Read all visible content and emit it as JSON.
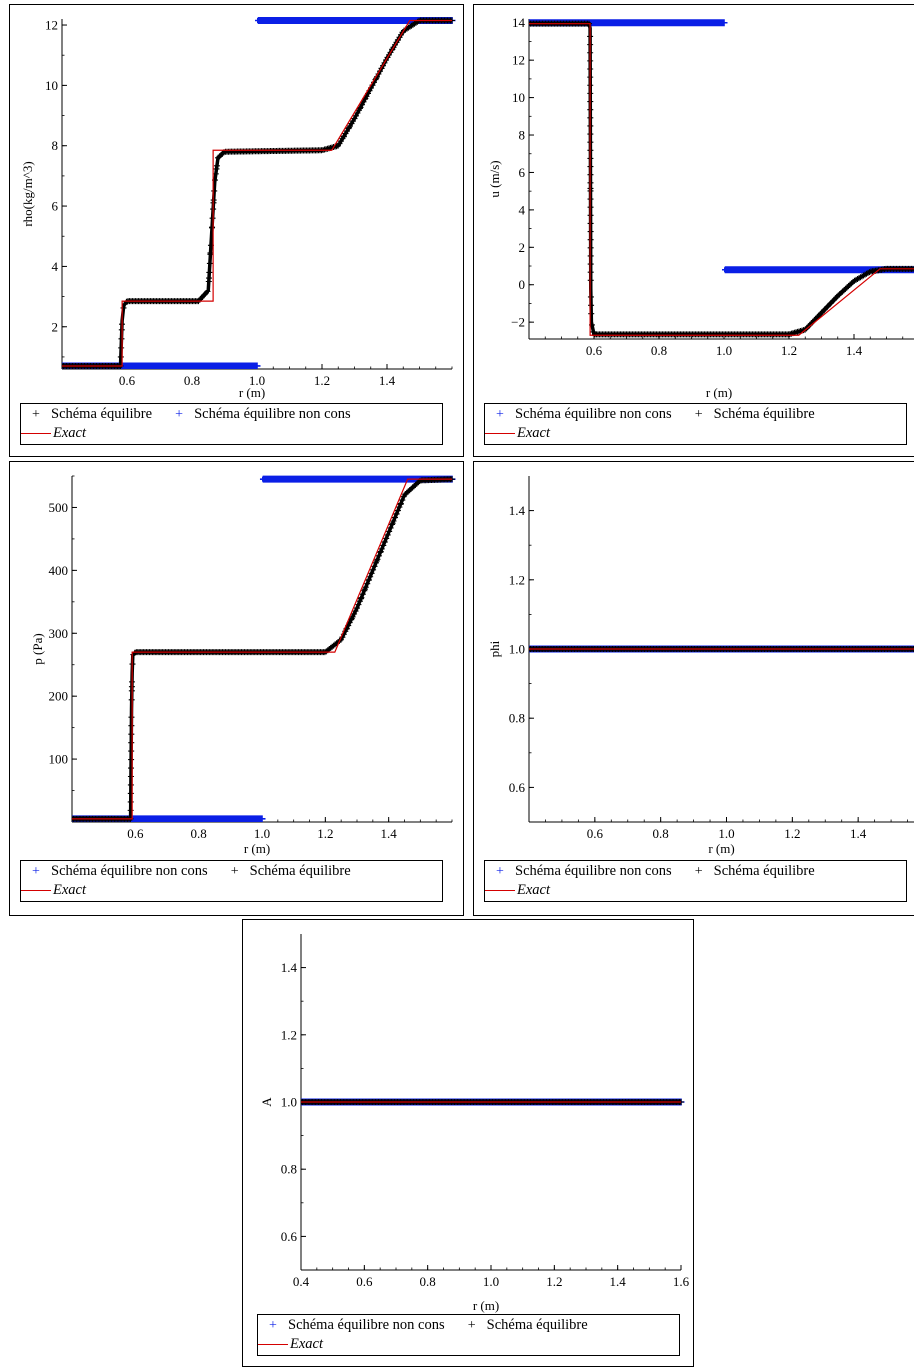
{
  "colors": {
    "exact": "#d40000",
    "equilibre": "#000000",
    "non_cons": "#0a1fe6"
  },
  "chart_data": [
    {
      "id": "rho",
      "type": "line",
      "xlabel": "r (m)",
      "ylabel": "rho(kg/m^3)",
      "xlim": [
        0.4,
        1.6
      ],
      "ylim": [
        0.6,
        12.2
      ],
      "xticks": [
        {
          "v": 0.6,
          "t": "0.6"
        },
        {
          "v": 0.8,
          "t": "0.8"
        },
        {
          "v": 1.0,
          "t": "1.0"
        },
        {
          "v": 1.2,
          "t": "1.2"
        },
        {
          "v": 1.4,
          "t": "1.4"
        }
      ],
      "yticks": [
        {
          "v": 2,
          "t": "2"
        },
        {
          "v": 4,
          "t": "4"
        },
        {
          "v": 6,
          "t": "6"
        },
        {
          "v": 8,
          "t": "8"
        },
        {
          "v": 10,
          "t": "10"
        },
        {
          "v": 12,
          "t": "12"
        }
      ],
      "series": [
        {
          "name": "Schéma équilibre",
          "role": "equilibre",
          "marker": "+",
          "x": [
            0.4,
            0.58,
            0.585,
            0.59,
            0.6,
            0.82,
            0.85,
            0.86,
            0.87,
            0.88,
            0.9,
            1.2,
            1.25,
            1.3,
            1.35,
            1.4,
            1.45,
            1.5,
            1.6
          ],
          "y": [
            0.7,
            0.7,
            2.2,
            2.7,
            2.85,
            2.85,
            3.2,
            5.0,
            6.8,
            7.6,
            7.8,
            7.85,
            8.0,
            8.9,
            9.9,
            10.9,
            11.8,
            12.15,
            12.15
          ]
        },
        {
          "name": "Schéma équilibre non cons",
          "role": "non_cons",
          "marker": "+",
          "x": [
            0.4,
            1.0,
            1.0,
            1.6
          ],
          "y": [
            0.7,
            0.7,
            12.15,
            12.15
          ]
        },
        {
          "name": "Exact",
          "role": "exact",
          "x": [
            0.4,
            0.585,
            0.585,
            0.865,
            0.865,
            1.23,
            1.47,
            1.6
          ],
          "y": [
            0.7,
            0.7,
            2.85,
            2.85,
            7.85,
            7.85,
            12.15,
            12.15
          ]
        }
      ],
      "legend": [
        [
          {
            "sym": "+",
            "role": "equilibre",
            "label": "Schéma équilibre"
          },
          {
            "sym": "+",
            "role": "non_cons",
            "label": "Schéma équilibre non cons"
          }
        ],
        [
          {
            "sym": "line",
            "role": "exact",
            "label": "Exact",
            "italic": true
          }
        ]
      ]
    },
    {
      "id": "u",
      "type": "line",
      "xlabel": "r (m)",
      "ylabel": "u (m/s)",
      "xlim": [
        0.4,
        1.6
      ],
      "ylim": [
        -2.9,
        14.2
      ],
      "xticks": [
        {
          "v": 0.6,
          "t": "0.6"
        },
        {
          "v": 0.8,
          "t": "0.8"
        },
        {
          "v": 1.0,
          "t": "1.0"
        },
        {
          "v": 1.2,
          "t": "1.2"
        },
        {
          "v": 1.4,
          "t": "1.4"
        }
      ],
      "yticks": [
        {
          "v": -2,
          "t": "−2"
        },
        {
          "v": 0,
          "t": "0"
        },
        {
          "v": 2,
          "t": "2"
        },
        {
          "v": 4,
          "t": "4"
        },
        {
          "v": 6,
          "t": "6"
        },
        {
          "v": 8,
          "t": "8"
        },
        {
          "v": 10,
          "t": "10"
        },
        {
          "v": 12,
          "t": "12"
        },
        {
          "v": 14,
          "t": "14"
        }
      ],
      "series": [
        {
          "name": "Schéma équilibre non cons",
          "role": "non_cons",
          "marker": "+",
          "x": [
            0.4,
            1.0,
            1.0,
            1.6
          ],
          "y": [
            14.0,
            14.0,
            0.8,
            0.8
          ]
        },
        {
          "name": "Schéma équilibre",
          "role": "equilibre",
          "marker": "+",
          "x": [
            0.4,
            0.585,
            0.588,
            0.59,
            0.592,
            0.6,
            1.2,
            1.25,
            1.3,
            1.35,
            1.4,
            1.45,
            1.5,
            1.6
          ],
          "y": [
            13.95,
            13.95,
            13.7,
            -0.2,
            -2.0,
            -2.65,
            -2.65,
            -2.4,
            -1.5,
            -0.6,
            0.2,
            0.7,
            0.85,
            0.85
          ]
        },
        {
          "name": "Exact",
          "role": "exact",
          "x": [
            0.4,
            0.588,
            0.588,
            1.23,
            1.48,
            1.6
          ],
          "y": [
            13.95,
            13.95,
            -2.7,
            -2.7,
            0.85,
            0.85
          ]
        }
      ],
      "legend": [
        [
          {
            "sym": "+",
            "role": "non_cons",
            "label": "Schéma équilibre non cons"
          },
          {
            "sym": "+",
            "role": "equilibre",
            "label": "Schéma équilibre"
          }
        ],
        [
          {
            "sym": "line",
            "role": "exact",
            "label": "Exact",
            "italic": true
          }
        ]
      ]
    },
    {
      "id": "p",
      "type": "line",
      "xlabel": "r (m)",
      "ylabel": "p (Pa)",
      "xlim": [
        0.4,
        1.6
      ],
      "ylim": [
        0,
        550
      ],
      "xticks": [
        {
          "v": 0.6,
          "t": "0.6"
        },
        {
          "v": 0.8,
          "t": "0.8"
        },
        {
          "v": 1.0,
          "t": "1.0"
        },
        {
          "v": 1.2,
          "t": "1.2"
        },
        {
          "v": 1.4,
          "t": "1.4"
        }
      ],
      "yticks": [
        {
          "v": 100,
          "t": "100"
        },
        {
          "v": 200,
          "t": "200"
        },
        {
          "v": 300,
          "t": "300"
        },
        {
          "v": 400,
          "t": "400"
        },
        {
          "v": 500,
          "t": "500"
        }
      ],
      "series": [
        {
          "name": "Schéma équilibre non cons",
          "role": "non_cons",
          "marker": "+",
          "x": [
            0.4,
            1.0,
            1.0,
            1.6
          ],
          "y": [
            5,
            5,
            545,
            545
          ]
        },
        {
          "name": "Schéma équilibre",
          "role": "equilibre",
          "marker": "+",
          "x": [
            0.4,
            0.585,
            0.588,
            0.59,
            0.592,
            0.6,
            1.2,
            1.25,
            1.3,
            1.35,
            1.4,
            1.45,
            1.5,
            1.6
          ],
          "y": [
            5,
            5,
            180,
            237,
            265,
            270,
            270,
            290,
            340,
            400,
            460,
            520,
            543,
            545
          ]
        },
        {
          "name": "Exact",
          "role": "exact",
          "x": [
            0.4,
            0.59,
            0.59,
            1.23,
            1.46,
            1.6
          ],
          "y": [
            5,
            5,
            270,
            270,
            545,
            545
          ]
        }
      ],
      "legend": [
        [
          {
            "sym": "+",
            "role": "non_cons",
            "label": "Schéma équilibre non cons"
          },
          {
            "sym": "+",
            "role": "equilibre",
            "label": "Schéma équilibre"
          }
        ],
        [
          {
            "sym": "line",
            "role": "exact",
            "label": "Exact",
            "italic": true
          }
        ]
      ]
    },
    {
      "id": "phi",
      "type": "line",
      "xlabel": "r (m)",
      "ylabel": "phi",
      "xlim": [
        0.4,
        1.6
      ],
      "ylim": [
        0.5,
        1.5
      ],
      "xticks": [
        {
          "v": 0.6,
          "t": "0.6"
        },
        {
          "v": 0.8,
          "t": "0.8"
        },
        {
          "v": 1.0,
          "t": "1.0"
        },
        {
          "v": 1.2,
          "t": "1.2"
        },
        {
          "v": 1.4,
          "t": "1.4"
        }
      ],
      "yticks": [
        {
          "v": 0.6,
          "t": "0.6"
        },
        {
          "v": 0.8,
          "t": "0.8"
        },
        {
          "v": 1.0,
          "t": "1.0"
        },
        {
          "v": 1.2,
          "t": "1.2"
        },
        {
          "v": 1.4,
          "t": "1.4"
        }
      ],
      "series": [
        {
          "name": "Schéma équilibre non cons",
          "role": "non_cons",
          "marker": "+",
          "x": [
            0.4,
            1.6
          ],
          "y": [
            1.0,
            1.0
          ]
        },
        {
          "name": "Schéma équilibre",
          "role": "equilibre",
          "marker": "+",
          "x": [
            0.4,
            1.6
          ],
          "y": [
            1.0,
            1.0
          ]
        },
        {
          "name": "Exact",
          "role": "exact",
          "x": [
            0.4,
            1.6
          ],
          "y": [
            1.0,
            1.0
          ]
        }
      ],
      "legend": [
        [
          {
            "sym": "+",
            "role": "non_cons",
            "label": "Schéma équilibre non cons"
          },
          {
            "sym": "+",
            "role": "equilibre",
            "label": "Schéma équilibre"
          }
        ],
        [
          {
            "sym": "line",
            "role": "exact",
            "label": "Exact",
            "italic": true
          }
        ]
      ]
    },
    {
      "id": "A",
      "type": "line",
      "xlabel": "r (m)",
      "ylabel": "A",
      "xlim": [
        0.4,
        1.6
      ],
      "ylim": [
        0.5,
        1.5
      ],
      "xticks": [
        {
          "v": 0.4,
          "t": "0.4"
        },
        {
          "v": 0.6,
          "t": "0.6"
        },
        {
          "v": 0.8,
          "t": "0.8"
        },
        {
          "v": 1.0,
          "t": "1.0"
        },
        {
          "v": 1.2,
          "t": "1.2"
        },
        {
          "v": 1.4,
          "t": "1.4"
        },
        {
          "v": 1.6,
          "t": "1.6"
        }
      ],
      "yticks": [
        {
          "v": 0.6,
          "t": "0.6"
        },
        {
          "v": 0.8,
          "t": "0.8"
        },
        {
          "v": 1.0,
          "t": "1.0"
        },
        {
          "v": 1.2,
          "t": "1.2"
        },
        {
          "v": 1.4,
          "t": "1.4"
        }
      ],
      "series": [
        {
          "name": "Schéma équilibre non cons",
          "role": "non_cons",
          "marker": "+",
          "x": [
            0.4,
            1.6
          ],
          "y": [
            1.0,
            1.0
          ]
        },
        {
          "name": "Schéma équilibre",
          "role": "equilibre",
          "marker": "+",
          "x": [
            0.4,
            1.6
          ],
          "y": [
            1.0,
            1.0
          ]
        },
        {
          "name": "Exact",
          "role": "exact",
          "x": [
            0.4,
            1.6
          ],
          "y": [
            1.0,
            1.0
          ]
        }
      ],
      "legend": [
        [
          {
            "sym": "+",
            "role": "non_cons",
            "label": "Schéma équilibre non cons"
          },
          {
            "sym": "+",
            "role": "equilibre",
            "label": "Schéma équilibre"
          }
        ],
        [
          {
            "sym": "line",
            "role": "exact",
            "label": "Exact",
            "italic": true
          }
        ]
      ]
    }
  ]
}
